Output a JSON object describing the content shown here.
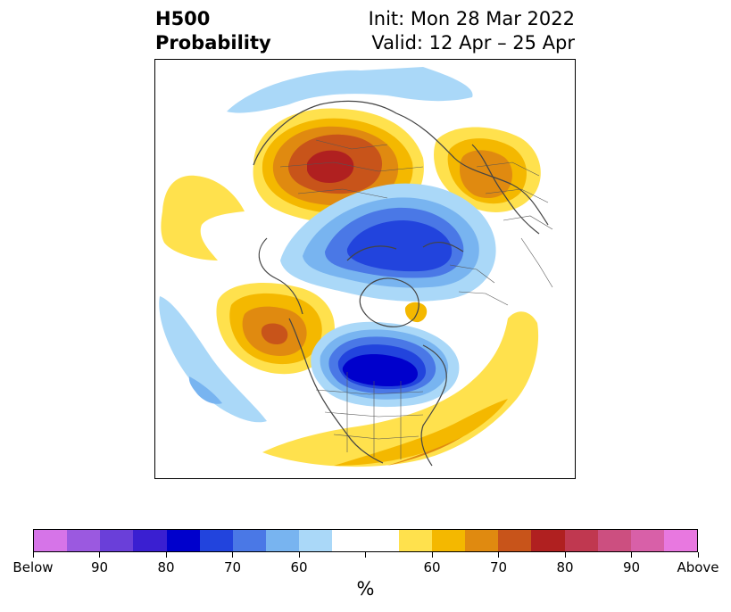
{
  "header": {
    "title_line1": "H500",
    "title_line2": "Probability",
    "init_text": "Init: Mon 28 Mar 2022",
    "valid_text": "Valid: 12 Apr – 25 Apr"
  },
  "colorbar": {
    "colors": [
      "#d674e8",
      "#9b59e0",
      "#6a3fd9",
      "#3a1fd1",
      "#0000cc",
      "#2244dd",
      "#4a78e6",
      "#78b4f0",
      "#aad8f8",
      "#ffffff",
      "#ffffff",
      "#ffe14d",
      "#f4b800",
      "#e08a10",
      "#c8541a",
      "#b02020",
      "#c03850",
      "#cc4f80",
      "#d860a8",
      "#e878e0"
    ],
    "tick_labels": [
      "Below",
      "90",
      "80",
      "70",
      "60",
      "",
      "60",
      "70",
      "80",
      "90",
      "Above"
    ],
    "label": "%"
  },
  "map": {
    "palette": {
      "blue_light": "#aad8f8",
      "blue_mid": "#78b4f0",
      "blue_strong": "#4a78e6",
      "blue_deep": "#2244dd",
      "blue_core": "#0000cc",
      "yellow": "#ffe14d",
      "gold": "#f4b800",
      "orange": "#e08a10",
      "rust": "#c8541a",
      "red": "#b02020",
      "coast": "#444444"
    }
  }
}
